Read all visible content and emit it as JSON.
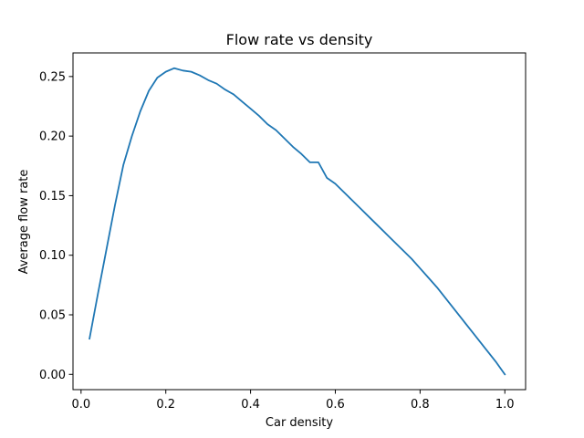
{
  "chart_data": {
    "type": "line",
    "title": "Flow rate vs density",
    "xlabel": "Car density",
    "ylabel": "Average flow rate",
    "xlim": [
      -0.019,
      1.049
    ],
    "ylim": [
      -0.0128,
      0.2698
    ],
    "xticks": [
      0.0,
      0.2,
      0.4,
      0.6,
      0.8,
      1.0
    ],
    "xtick_labels": [
      "0.0",
      "0.2",
      "0.4",
      "0.6",
      "0.8",
      "1.0"
    ],
    "yticks": [
      0.0,
      0.05,
      0.1,
      0.15,
      0.2,
      0.25
    ],
    "ytick_labels": [
      "0.00",
      "0.05",
      "0.10",
      "0.15",
      "0.20",
      "0.25"
    ],
    "grid": false,
    "colors": {
      "line": "#1f77b4",
      "axes": "#000000",
      "background": "#ffffff"
    },
    "series": [
      {
        "x": [
          0.02,
          0.04,
          0.06,
          0.08,
          0.1,
          0.12,
          0.14,
          0.16,
          0.18,
          0.2,
          0.22,
          0.24,
          0.26,
          0.28,
          0.3,
          0.32,
          0.34,
          0.36,
          0.38,
          0.4,
          0.42,
          0.44,
          0.46,
          0.48,
          0.5,
          0.52,
          0.54,
          0.56,
          0.58,
          0.6,
          0.62,
          0.64,
          0.66,
          0.68,
          0.7,
          0.72,
          0.74,
          0.76,
          0.78,
          0.8,
          0.82,
          0.84,
          0.86,
          0.88,
          0.9,
          0.92,
          0.94,
          0.96,
          0.98,
          1.0
        ],
        "y": [
          0.03,
          0.068,
          0.105,
          0.142,
          0.176,
          0.2,
          0.221,
          0.238,
          0.249,
          0.254,
          0.257,
          0.255,
          0.254,
          0.251,
          0.247,
          0.244,
          0.239,
          0.235,
          0.229,
          0.223,
          0.217,
          0.21,
          0.205,
          0.198,
          0.191,
          0.185,
          0.178,
          0.178,
          0.165,
          0.16,
          0.153,
          0.146,
          0.139,
          0.132,
          0.125,
          0.118,
          0.111,
          0.104,
          0.097,
          0.089,
          0.081,
          0.073,
          0.064,
          0.055,
          0.046,
          0.037,
          0.028,
          0.019,
          0.01,
          0.0
        ]
      }
    ]
  }
}
